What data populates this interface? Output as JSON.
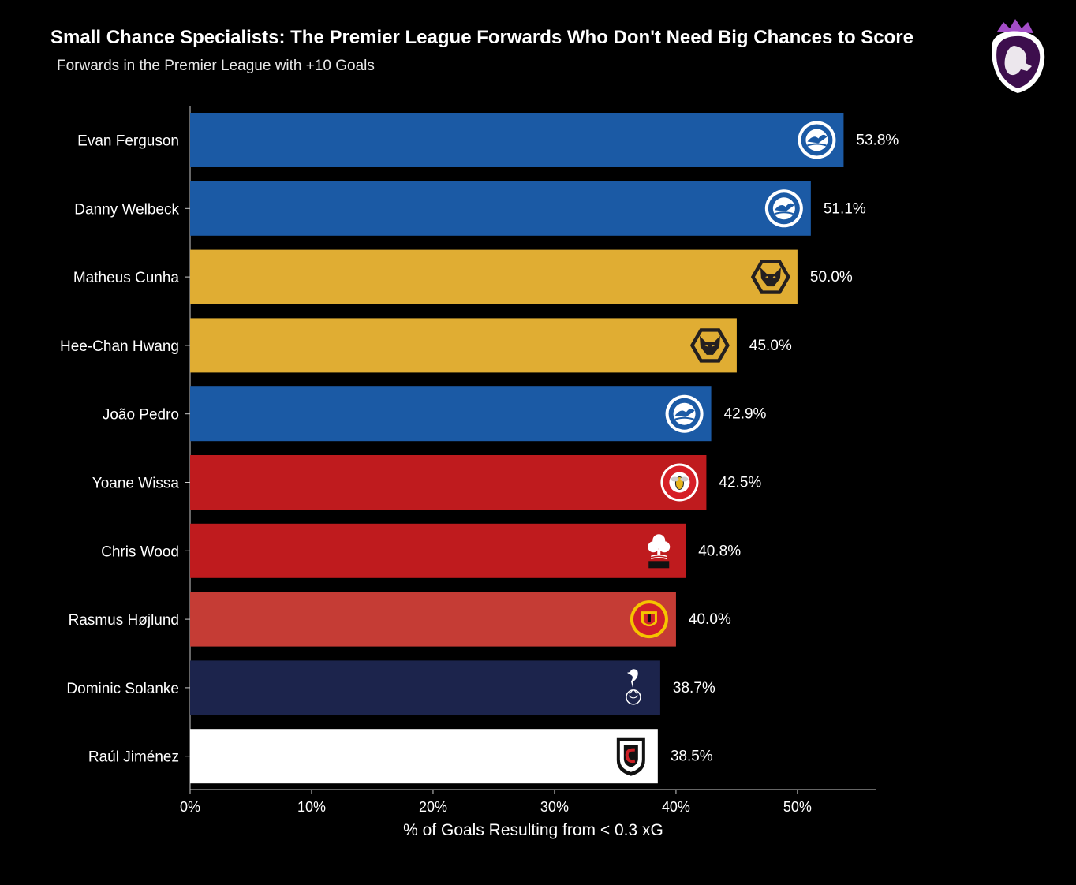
{
  "header": {
    "title": "Small Chance Specialists: The Premier League Forwards Who Don't Need Big Chances to Score",
    "subtitle": "Forwards in the Premier League with +10 Goals"
  },
  "logo": {
    "icon": "premier-league-lion-icon"
  },
  "chart_data": {
    "type": "bar",
    "orientation": "horizontal",
    "xlabel": "% of Goals Resulting from < 0.3 xG",
    "xlim": [
      0,
      56.5
    ],
    "xticks": [
      0,
      10,
      20,
      30,
      40,
      50
    ],
    "xtick_labels": [
      "0%",
      "10%",
      "20%",
      "30%",
      "40%",
      "50%"
    ],
    "grid": false,
    "categories": [
      "Evan Ferguson",
      "Danny Welbeck",
      "Matheus Cunha",
      "Hee-Chan Hwang",
      "João Pedro",
      "Yoane Wissa",
      "Chris Wood",
      "Rasmus Højlund",
      "Dominic Solanke",
      "Raúl Jiménez"
    ],
    "values": [
      53.8,
      51.1,
      50.0,
      45.0,
      42.9,
      42.5,
      40.8,
      40.0,
      38.7,
      38.5
    ],
    "value_labels": [
      "53.8%",
      "51.1%",
      "50.0%",
      "45.0%",
      "42.9%",
      "42.5%",
      "40.8%",
      "40.0%",
      "38.7%",
      "38.5%"
    ],
    "bar_colors": [
      "#1b5aa5",
      "#1b5aa5",
      "#e0ad33",
      "#e0ad33",
      "#1b5aa5",
      "#bf1b1e",
      "#bf1b1e",
      "#c53c35",
      "#1c244c",
      "#ffffff"
    ],
    "club_icons": [
      "brighton-crest-icon",
      "brighton-crest-icon",
      "wolves-crest-icon",
      "wolves-crest-icon",
      "brighton-crest-icon",
      "brentford-crest-icon",
      "forest-crest-icon",
      "man-united-crest-icon",
      "tottenham-crest-icon",
      "fulham-crest-icon"
    ]
  }
}
